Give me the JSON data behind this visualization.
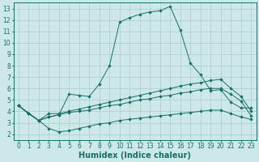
{
  "bg_color": "#cce8e8",
  "grid_color": "#b0d0d0",
  "line_color": "#1a6e6a",
  "marker_color": "#1a6e6a",
  "xlabel": "Humidex (Indice chaleur)",
  "xlabel_fontsize": 7,
  "xlim": [
    -0.5,
    23.5
  ],
  "ylim": [
    1.5,
    13.5
  ],
  "xticks": [
    0,
    1,
    2,
    3,
    4,
    5,
    6,
    7,
    8,
    9,
    10,
    11,
    12,
    13,
    14,
    15,
    16,
    17,
    18,
    19,
    20,
    21,
    22,
    23
  ],
  "yticks": [
    2,
    3,
    4,
    5,
    6,
    7,
    8,
    9,
    10,
    11,
    12,
    13
  ],
  "tick_fontsize": 5.5,
  "line1_x": [
    0,
    1,
    2,
    3,
    4,
    5,
    6,
    7,
    8,
    9,
    10,
    11,
    12,
    13,
    14,
    15,
    16,
    17,
    18,
    19,
    20,
    21,
    22,
    23
  ],
  "line1_y": [
    4.5,
    3.8,
    3.2,
    3.5,
    3.7,
    5.5,
    5.4,
    5.3,
    6.4,
    8.0,
    11.8,
    12.2,
    12.5,
    12.7,
    12.8,
    13.2,
    11.1,
    8.2,
    7.2,
    5.8,
    5.9,
    4.8,
    4.3,
    4.3
  ],
  "line2_x": [
    0,
    2,
    3,
    4,
    5,
    6,
    7,
    8,
    9,
    10,
    11,
    12,
    13,
    14,
    15,
    16,
    17,
    18,
    19,
    20,
    21,
    22,
    23
  ],
  "line2_y": [
    4.5,
    3.2,
    3.8,
    3.8,
    4.0,
    4.2,
    4.4,
    4.6,
    4.8,
    5.0,
    5.2,
    5.4,
    5.6,
    5.8,
    6.0,
    6.2,
    6.4,
    6.5,
    6.7,
    6.8,
    6.0,
    5.3,
    4.0
  ],
  "line3_x": [
    0,
    1,
    2,
    3,
    4,
    5,
    6,
    7,
    8,
    9,
    10,
    11,
    12,
    13,
    14,
    15,
    16,
    17,
    18,
    19,
    20,
    21,
    22,
    23
  ],
  "line3_y": [
    4.5,
    3.8,
    3.2,
    3.5,
    3.7,
    3.9,
    4.0,
    4.1,
    4.3,
    4.5,
    4.6,
    4.8,
    5.0,
    5.1,
    5.3,
    5.4,
    5.6,
    5.7,
    5.9,
    6.0,
    6.0,
    5.5,
    4.9,
    3.6
  ],
  "line4_x": [
    0,
    1,
    2,
    3,
    4,
    5,
    6,
    7,
    8,
    9,
    10,
    11,
    12,
    13,
    14,
    15,
    16,
    17,
    18,
    19,
    20,
    21,
    22,
    23
  ],
  "line4_y": [
    4.5,
    3.8,
    3.2,
    2.5,
    2.2,
    2.3,
    2.5,
    2.7,
    2.9,
    3.0,
    3.2,
    3.3,
    3.4,
    3.5,
    3.6,
    3.7,
    3.8,
    3.9,
    4.0,
    4.1,
    4.1,
    3.8,
    3.5,
    3.3
  ]
}
